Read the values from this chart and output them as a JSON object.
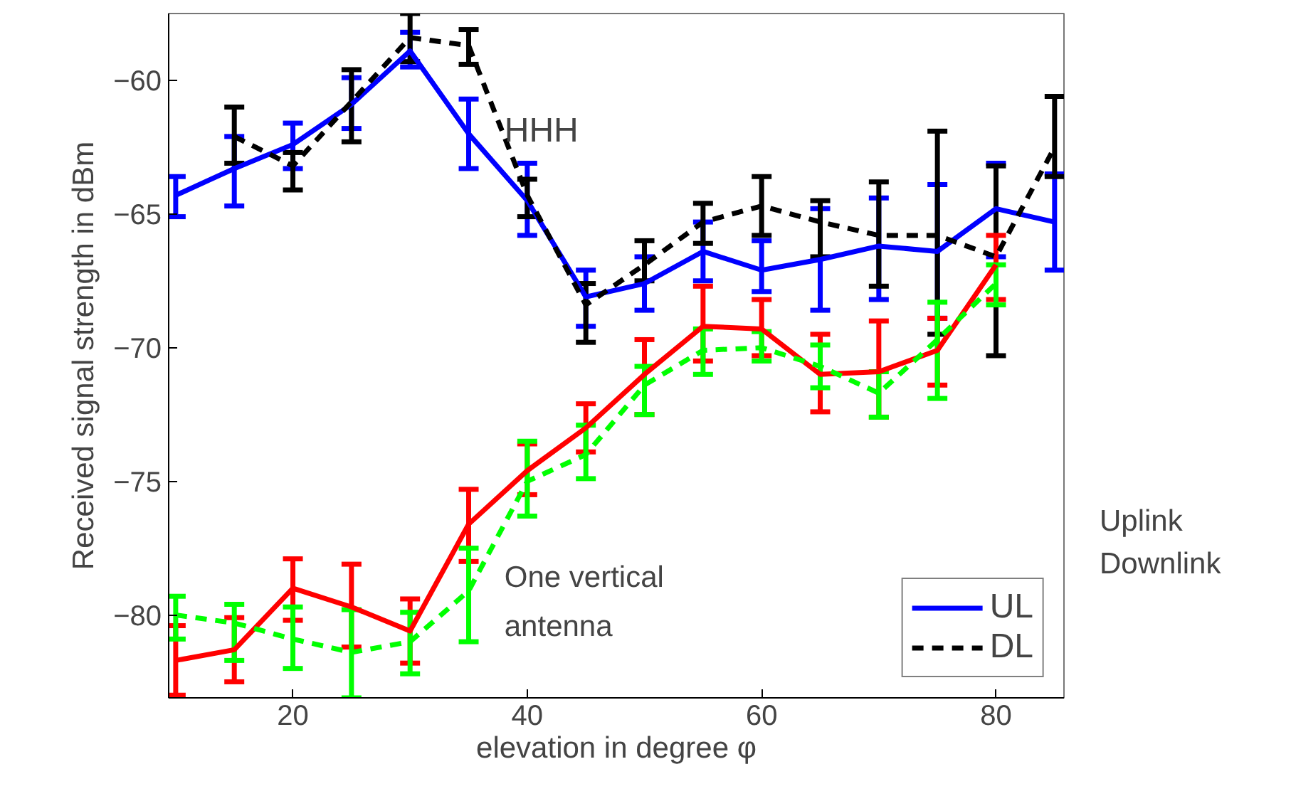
{
  "chart_data": {
    "type": "line",
    "xlabel": "elevation in degree φ",
    "ylabel": "Received signal strength in dBm",
    "x": [
      10,
      15,
      20,
      25,
      30,
      35,
      40,
      45,
      50,
      55,
      60,
      65,
      70,
      75,
      80,
      85
    ],
    "xlim": [
      9.4,
      85.8
    ],
    "xticks": [
      20,
      40,
      60,
      80
    ],
    "ylim": [
      -83.1,
      -57.5
    ],
    "yticks": [
      -80,
      -75,
      -70,
      -65,
      -60
    ],
    "grid": false,
    "legend": "bottom right",
    "marker": "none",
    "series": [
      {
        "name": "UL",
        "color": "#0000ff",
        "line_style": "solid",
        "values": [
          -64.3,
          -63.3,
          -62.4,
          -60.9,
          -58.9,
          -62.0,
          -64.5,
          -68.1,
          -67.6,
          -66.4,
          -67.1,
          -66.7,
          -66.2,
          -66.4,
          -64.8,
          -65.3
        ],
        "errors": [
          [
            -65.1,
            -63.6
          ],
          [
            -64.7,
            -62.1
          ],
          [
            -63.3,
            -61.6
          ],
          [
            -61.8,
            -59.9
          ],
          [
            -59.5,
            -58.2
          ],
          [
            -63.3,
            -60.7
          ],
          [
            -65.8,
            -63.1
          ],
          [
            -69.2,
            -67.1
          ],
          [
            -68.6,
            -66.6
          ],
          [
            -67.5,
            -65.3
          ],
          [
            -67.9,
            -66.0
          ],
          [
            -68.6,
            -64.8
          ],
          [
            -68.2,
            -64.4
          ],
          [
            -68.9,
            -63.9
          ],
          [
            -66.6,
            -63.1
          ],
          [
            -67.1,
            -63.5
          ]
        ]
      },
      {
        "name": "DL",
        "color": "#000000",
        "line_style": "dashed",
        "values": [
          null,
          -62.1,
          -63.2,
          -60.8,
          -58.4,
          -58.7,
          -64.3,
          -68.4,
          -66.9,
          -65.3,
          -64.7,
          -65.3,
          -65.8,
          -65.8,
          -66.6,
          -62.5
        ],
        "errors": [
          null,
          [
            -63.1,
            -61.0
          ],
          [
            -64.1,
            -62.7
          ],
          [
            -62.3,
            -59.6
          ],
          [
            -59.3,
            -57.5
          ],
          [
            -59.4,
            -58.1
          ],
          [
            -65.1,
            -63.7
          ],
          [
            -69.8,
            -67.6
          ],
          [
            -67.5,
            -66.0
          ],
          [
            -66.1,
            -64.6
          ],
          [
            -65.8,
            -63.6
          ],
          [
            -66.6,
            -64.5
          ],
          [
            -67.7,
            -63.8
          ],
          [
            -69.5,
            -61.9
          ],
          [
            -70.3,
            -63.2
          ],
          [
            -63.6,
            -60.6
          ]
        ]
      },
      {
        "color": "#ff0000",
        "line_style": "solid",
        "values": [
          -81.7,
          -81.3,
          -79.0,
          -79.7,
          -80.6,
          -76.6,
          -74.6,
          -73.0,
          -71.0,
          -69.2,
          -69.3,
          -71.0,
          -70.9,
          -70.1,
          -66.9,
          null
        ],
        "errors": [
          [
            -83.0,
            -80.4
          ],
          [
            -82.5,
            -80.1
          ],
          [
            -80.2,
            -77.9
          ],
          [
            -81.2,
            -78.1
          ],
          [
            -81.8,
            -79.4
          ],
          [
            -78.0,
            -75.3
          ],
          [
            -75.5,
            -73.6
          ],
          [
            -73.9,
            -72.1
          ],
          [
            -72.5,
            -69.7
          ],
          [
            -70.5,
            -67.7
          ],
          [
            -70.3,
            -68.2
          ],
          [
            -72.4,
            -69.5
          ],
          [
            -72.6,
            -69.0
          ],
          [
            -71.4,
            -68.9
          ],
          [
            -68.2,
            -65.8
          ],
          null
        ]
      },
      {
        "color": "#00ff00",
        "line_style": "dashed",
        "values": [
          -80.0,
          -80.3,
          -80.9,
          -81.4,
          -81.0,
          -79.1,
          -75.0,
          -74.0,
          -71.4,
          -70.1,
          -70.0,
          -70.7,
          -71.7,
          -69.7,
          -67.6,
          null
        ],
        "errors": [
          [
            -80.9,
            -79.3
          ],
          [
            -81.7,
            -79.6
          ],
          [
            -82.0,
            -79.7
          ],
          [
            -83.1,
            -79.8
          ],
          [
            -82.2,
            -79.9
          ],
          [
            -81.0,
            -77.5
          ],
          [
            -76.3,
            -73.5
          ],
          [
            -74.9,
            -72.9
          ],
          [
            -72.5,
            -70.7
          ],
          [
            -71.0,
            -69.3
          ],
          [
            -70.5,
            -69.4
          ],
          [
            -71.5,
            -69.9
          ],
          [
            -72.6,
            -70.9
          ],
          [
            -71.9,
            -68.3
          ],
          [
            -68.4,
            -66.9
          ],
          null
        ]
      }
    ],
    "annotations": [
      "HHH",
      "One vertical antenna",
      "Uplink",
      "Downlink"
    ]
  }
}
